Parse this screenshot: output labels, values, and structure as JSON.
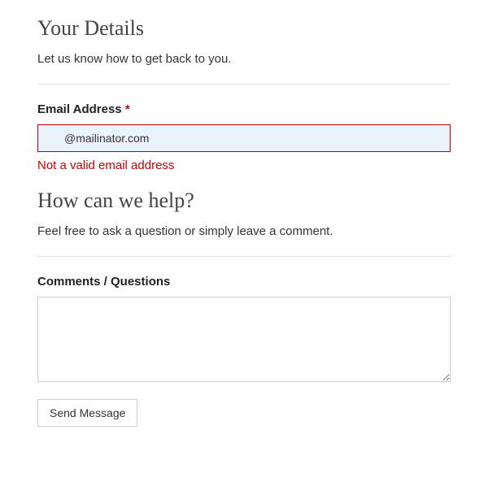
{
  "section1": {
    "title": "Your Details",
    "description": "Let us know how to get back to you."
  },
  "emailField": {
    "label": "Email Address",
    "requiredMark": "*",
    "value": "@mailinator.com",
    "error": "Not a valid email address"
  },
  "section2": {
    "title": "How can we help?",
    "description": "Feel free to ask a question or simply leave a comment."
  },
  "commentsField": {
    "label": "Comments / Questions",
    "value": ""
  },
  "submit": {
    "label": "Send Message"
  },
  "colors": {
    "error": "#cc0000",
    "inputBgError": "#eaf2fb",
    "border": "#cccccc",
    "divider": "#dddddd",
    "text": "#333333",
    "heading": "#444444"
  }
}
